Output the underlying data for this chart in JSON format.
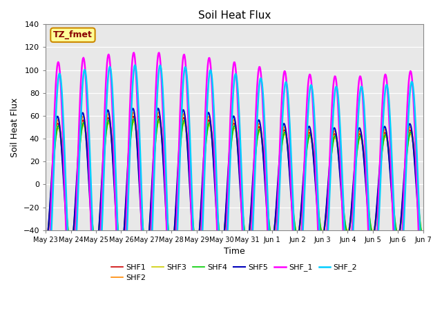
{
  "title": "Soil Heat Flux",
  "xlabel": "Time",
  "ylabel": "Soil Heat Flux",
  "ylim": [
    -40,
    140
  ],
  "series": [
    "SHF1",
    "SHF2",
    "SHF3",
    "SHF4",
    "SHF5",
    "SHF_1",
    "SHF_2"
  ],
  "colors": [
    "#cc0000",
    "#ff8800",
    "#cccc00",
    "#00cc00",
    "#0000bb",
    "#ff00ff",
    "#00ccff"
  ],
  "linewidths": [
    1.2,
    1.2,
    1.2,
    1.2,
    1.5,
    1.8,
    1.8
  ],
  "annotation_text": "TZ_fmet",
  "annotation_bg": "#ffff99",
  "annotation_border": "#cc8800",
  "annotation_text_color": "#880000",
  "tick_labels": [
    "May 23",
    "May 24",
    "May 25",
    "May 26",
    "May 27",
    "May 28",
    "May 29",
    "May 30",
    "May 31",
    "Jun 1",
    "Jun 2",
    "Jun 3",
    "Jun 4",
    "Jun 5",
    "Jun 6",
    "Jun 7"
  ],
  "yticks": [
    -40,
    -20,
    0,
    20,
    40,
    60,
    80,
    100,
    120,
    140
  ],
  "bg_color": "#dddddd",
  "plot_bg": "#e8e8e8"
}
